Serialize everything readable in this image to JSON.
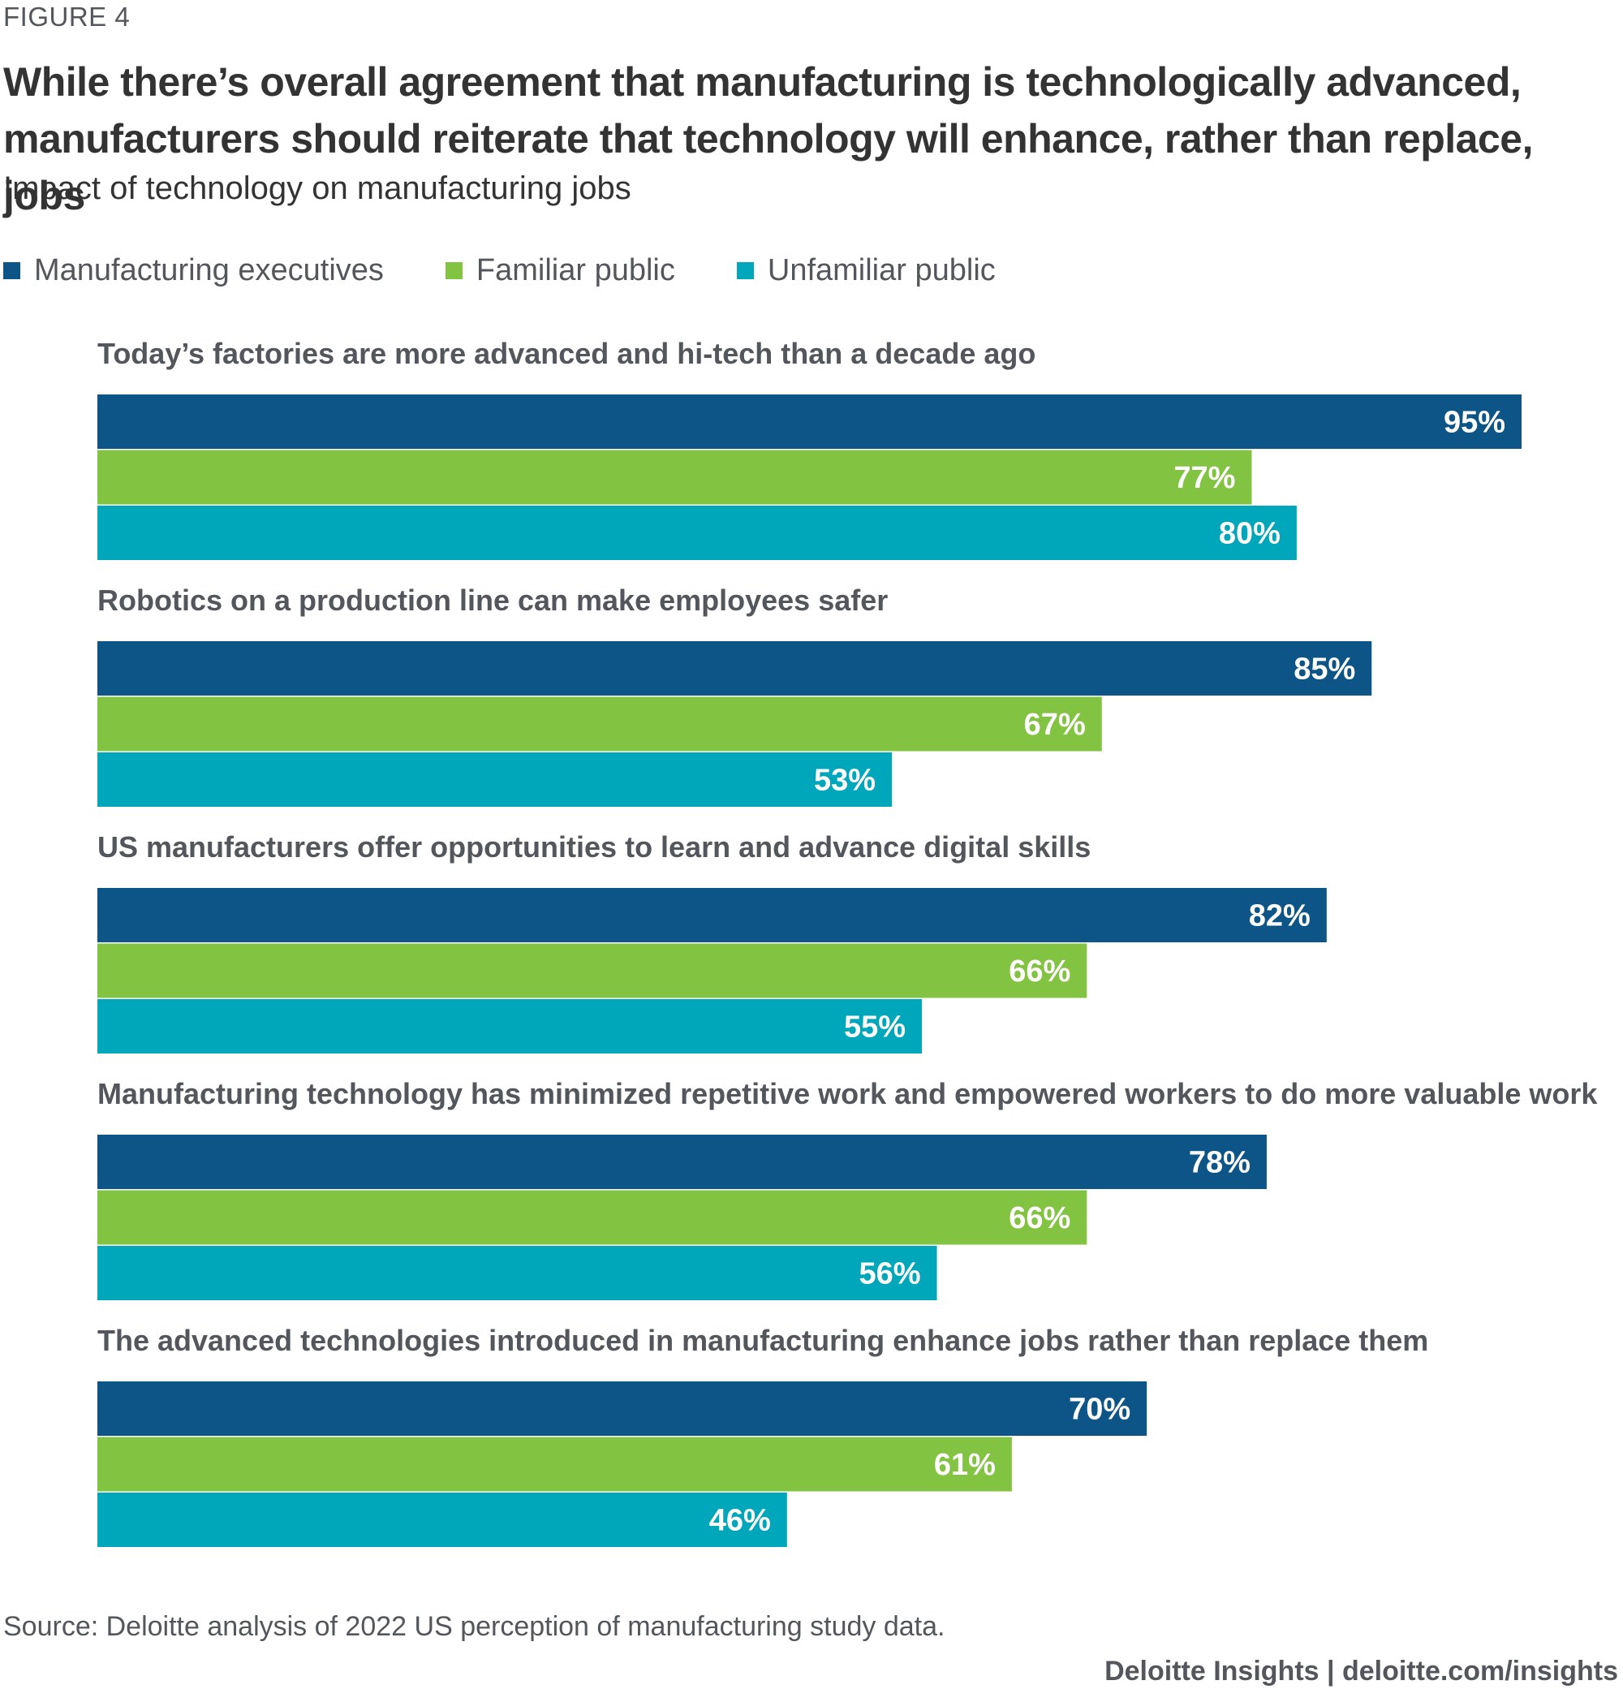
{
  "figure_label": "FIGURE 4",
  "title": "While there’s overall agreement that manufacturing is technologically advanced, manufacturers should reiterate that technology will enhance, rather than replace, jobs",
  "subtitle": "Impact of technology on manufacturing jobs",
  "source": "Source: Deloitte analysis of 2022 US perception of manufacturing study data.",
  "footer": "Deloitte Insights | deloitte.com/insights",
  "chart_data": {
    "type": "bar",
    "orientation": "horizontal",
    "value_suffix": "%",
    "xlim": [
      0,
      100
    ],
    "grid": false,
    "legend_position": "top-left",
    "categories": [
      "Today’s factories are more advanced and hi-tech than a decade ago",
      "Robotics on a production line can make employees safer",
      "US manufacturers offer opportunities to learn and advance digital skills",
      "Manufacturing technology has minimized repetitive work and empowered workers to do more valuable work",
      "The advanced technologies introduced in manufacturing enhance jobs rather than replace them"
    ],
    "series": [
      {
        "name": "Manufacturing executives",
        "color": "#0d5586",
        "values": [
          95,
          85,
          82,
          78,
          70
        ]
      },
      {
        "name": "Familiar public",
        "color": "#82c341",
        "values": [
          77,
          67,
          66,
          66,
          61
        ]
      },
      {
        "name": "Unfamiliar public",
        "color": "#00a6b9",
        "values": [
          80,
          53,
          55,
          56,
          46
        ]
      }
    ]
  }
}
